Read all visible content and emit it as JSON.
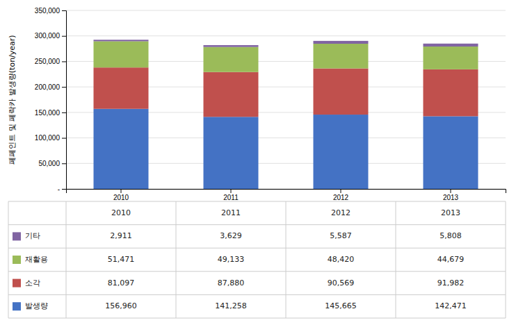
{
  "chart_data": {
    "type": "bar",
    "stacked": true,
    "grid": true,
    "ylabel": "페페인트 및 페락카 발생량(ton/year)",
    "categories": [
      "2010",
      "2011",
      "2012",
      "2013"
    ],
    "ylim": [
      0,
      350000
    ],
    "yticks": [
      {
        "value": 0,
        "label": "-"
      },
      {
        "value": 50000,
        "label": "50,000"
      },
      {
        "value": 100000,
        "label": "100,000"
      },
      {
        "value": 150000,
        "label": "150,000"
      },
      {
        "value": 200000,
        "label": "200,000"
      },
      {
        "value": 250000,
        "label": "250,000"
      },
      {
        "value": 300000,
        "label": "300,000"
      },
      {
        "value": 350000,
        "label": "350,000"
      }
    ],
    "series": [
      {
        "name": "발생량",
        "color": "#4472C4",
        "values": [
          156960,
          141258,
          145665,
          142471
        ],
        "value_labels": [
          "156,960",
          "141,258",
          "145,665",
          "142,471"
        ]
      },
      {
        "name": "소각",
        "color": "#C0504D",
        "values": [
          81097,
          87880,
          90569,
          91982
        ],
        "value_labels": [
          "81,097",
          "87,880",
          "90,569",
          "91,982"
        ]
      },
      {
        "name": "재활용",
        "color": "#9BBB59",
        "values": [
          51471,
          49133,
          48420,
          44679
        ],
        "value_labels": [
          "51,471",
          "49,133",
          "48,420",
          "44,679"
        ]
      },
      {
        "name": "기타",
        "color": "#8064A2",
        "values": [
          2911,
          3629,
          5587,
          5808
        ],
        "value_labels": [
          "2,911",
          "3,629",
          "5,587",
          "5,808"
        ]
      }
    ]
  }
}
